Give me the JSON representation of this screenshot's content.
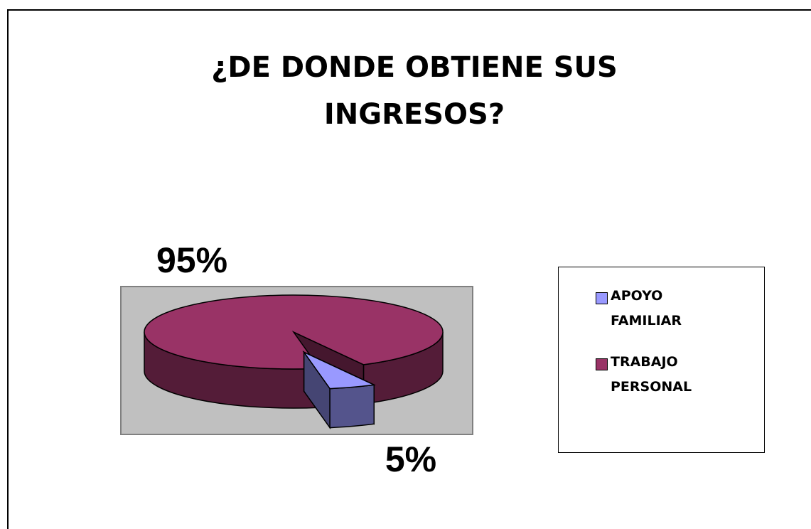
{
  "chart_data": {
    "type": "pie",
    "title": "¿DE DONDE OBTIENE SUS INGRESOS?",
    "categories": [
      "APOYO FAMILIAR",
      "TRABAJO PERSONAL"
    ],
    "values": [
      5,
      95
    ],
    "value_labels": [
      "5%",
      "95%"
    ],
    "colors": [
      "#9999ff",
      "#993366"
    ],
    "legend": "right",
    "three_d": true
  }
}
